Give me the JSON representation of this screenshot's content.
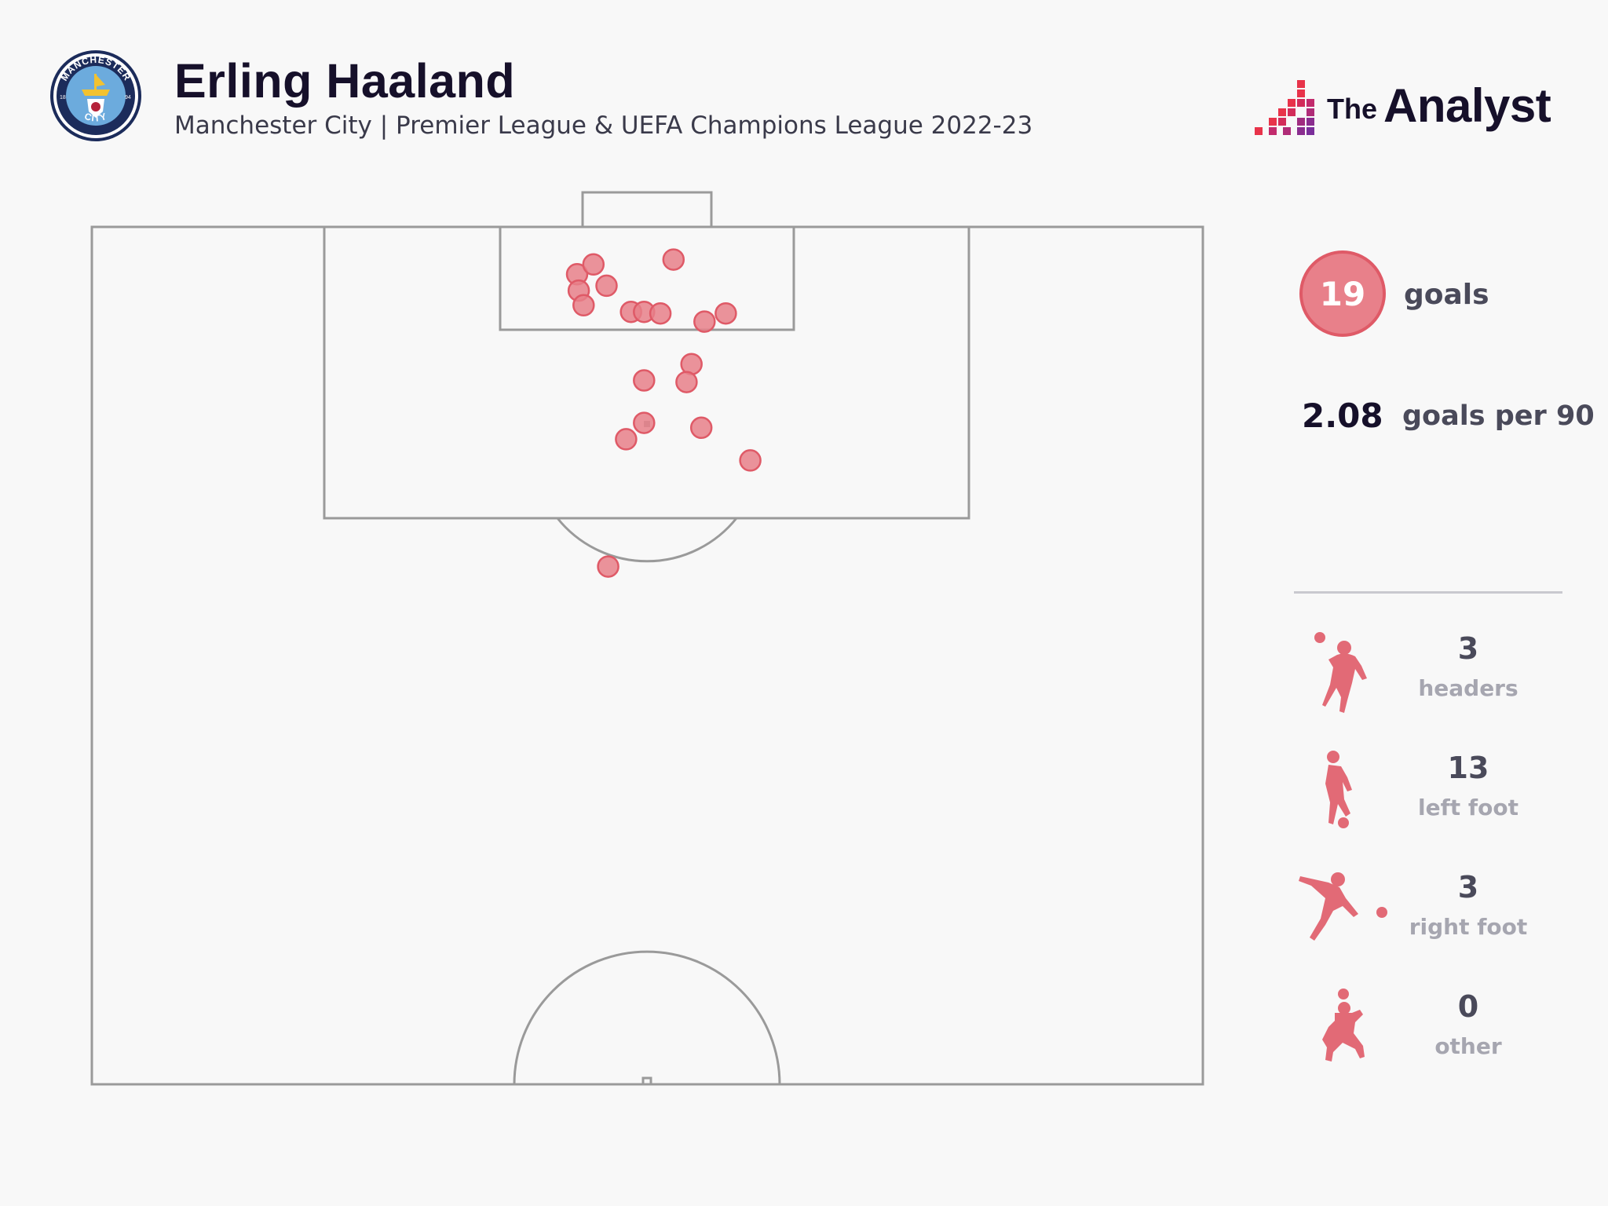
{
  "header": {
    "player": "Erling Haaland",
    "subtitle": "Manchester City | Premier League & UEFA Champions League 2022-23",
    "crest": {
      "name": "manchester-city-crest",
      "top_text": "MANCHESTER",
      "bottom_text": "CITY",
      "left_year": "18",
      "right_year": "94",
      "colors": {
        "outer": "#1c2c5b",
        "inner": "#6cabdd"
      }
    },
    "brand": {
      "the": "The",
      "analyst": "Analyst",
      "colors": [
        "#e8334a",
        "#c22b6d",
        "#8a2d8f"
      ]
    }
  },
  "stats": {
    "goals_value": "19",
    "goals_label": "goals",
    "per90_value": "2.08",
    "per90_label": "goals per 90",
    "accent": "#e8808a"
  },
  "breakdown": [
    {
      "count": "3",
      "label": "headers",
      "icon": "header-player-icon"
    },
    {
      "count": "13",
      "label": "left foot",
      "icon": "left-foot-player-icon"
    },
    {
      "count": "3",
      "label": "right foot",
      "icon": "right-foot-player-icon"
    },
    {
      "count": "0",
      "label": "other",
      "icon": "other-player-icon"
    }
  ],
  "chart_data": {
    "type": "scatter",
    "title": "",
    "xlabel": "",
    "ylabel": "",
    "xlim": [
      0,
      68
    ],
    "ylim": [
      0,
      52.5
    ],
    "x_description": "distance across pitch width (0 = left touchline)",
    "y_description": "distance from goal line",
    "grid": false,
    "series": [
      {
        "values": [
          {
            "x": 29.7,
            "y": 2.9
          },
          {
            "x": 30.7,
            "y": 2.3
          },
          {
            "x": 29.8,
            "y": 3.9
          },
          {
            "x": 31.5,
            "y": 3.6
          },
          {
            "x": 30.1,
            "y": 4.8
          },
          {
            "x": 35.6,
            "y": 2.0
          },
          {
            "x": 33.0,
            "y": 5.2
          },
          {
            "x": 33.8,
            "y": 5.2
          },
          {
            "x": 34.8,
            "y": 5.3
          },
          {
            "x": 37.5,
            "y": 5.8
          },
          {
            "x": 38.8,
            "y": 5.3
          },
          {
            "x": 36.7,
            "y": 8.4
          },
          {
            "x": 33.8,
            "y": 9.4
          },
          {
            "x": 36.4,
            "y": 9.5
          },
          {
            "x": 33.8,
            "y": 12.0
          },
          {
            "x": 32.7,
            "y": 13.0
          },
          {
            "x": 37.3,
            "y": 12.3
          },
          {
            "x": 40.3,
            "y": 14.3
          },
          {
            "x": 31.6,
            "y": 20.8
          }
        ]
      }
    ]
  }
}
